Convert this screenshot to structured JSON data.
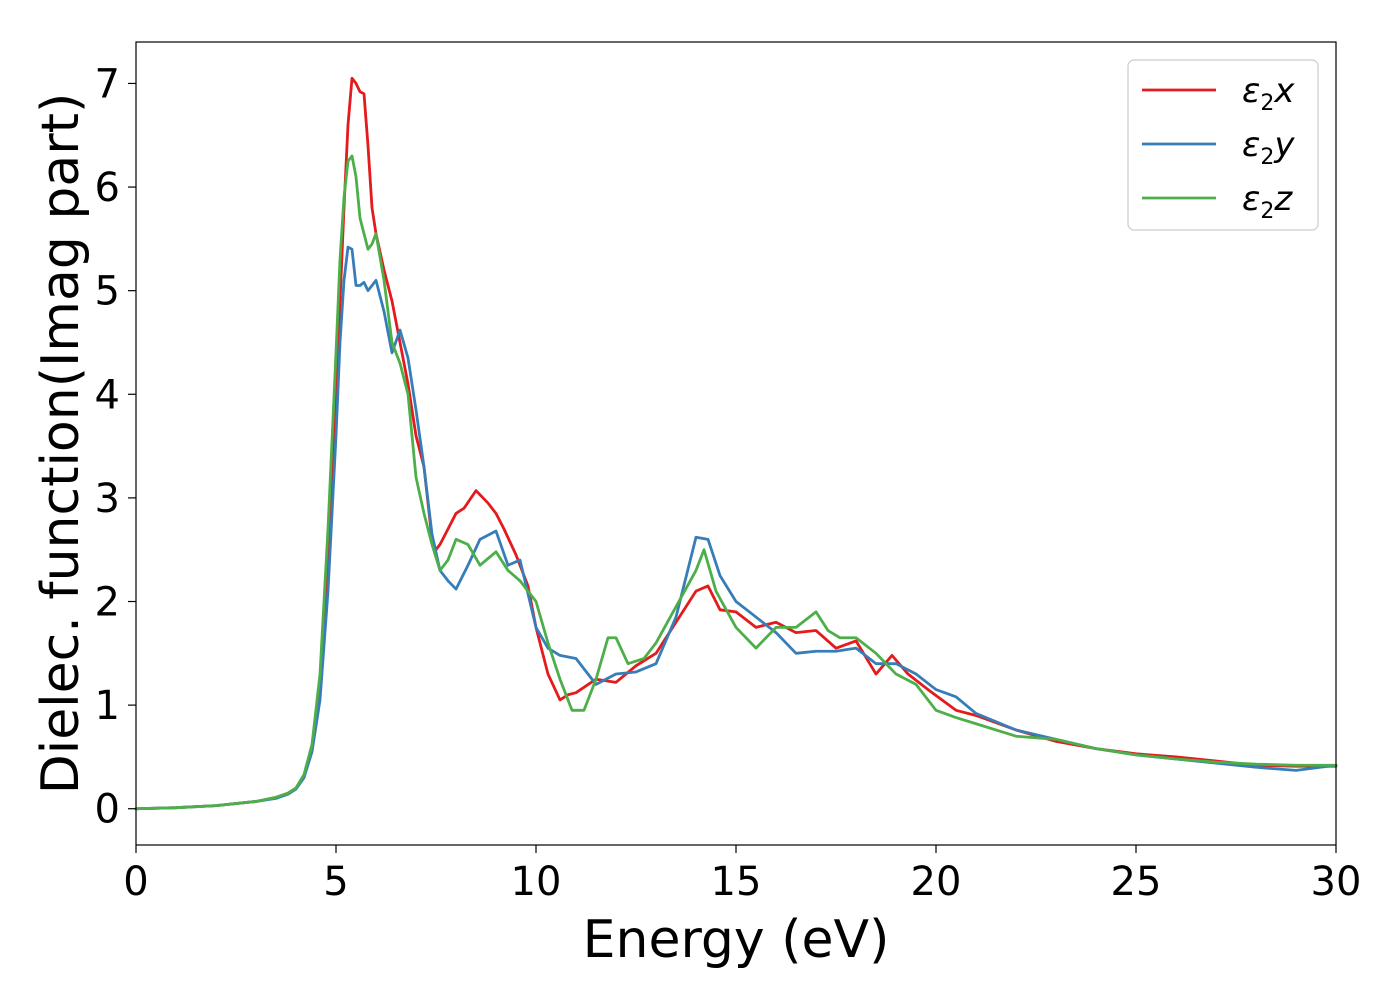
{
  "chart_data": {
    "type": "line",
    "xlabel": "Energy (eV)",
    "ylabel": "Dielec. function(Imag part)",
    "xlim": [
      0,
      30
    ],
    "ylim": [
      -0.35,
      7.4
    ],
    "xticks": [
      0,
      5,
      10,
      15,
      20,
      25,
      30
    ],
    "yticks": [
      0,
      1,
      2,
      3,
      4,
      5,
      6,
      7
    ],
    "grid": false,
    "legend": "top-right",
    "series": [
      {
        "name": "ε2x",
        "name_base": "ε",
        "name_sub": "2",
        "name_var": "x",
        "color": "#e41a1c",
        "x": [
          0,
          1,
          2,
          3,
          3.5,
          3.8,
          4.0,
          4.2,
          4.4,
          4.6,
          4.8,
          5.0,
          5.1,
          5.2,
          5.3,
          5.4,
          5.5,
          5.6,
          5.7,
          5.8,
          5.9,
          6.0,
          6.2,
          6.4,
          6.6,
          6.8,
          7.0,
          7.2,
          7.4,
          7.5,
          7.6,
          7.8,
          8.0,
          8.2,
          8.5,
          8.8,
          9.0,
          9.2,
          9.5,
          9.8,
          10.0,
          10.3,
          10.6,
          10.8,
          11.0,
          11.5,
          12.0,
          12.5,
          13.0,
          13.5,
          14.0,
          14.3,
          14.6,
          15.0,
          15.5,
          16.0,
          16.5,
          17.0,
          17.5,
          18.0,
          18.5,
          18.9,
          19.3,
          19.8,
          20.5,
          21,
          22,
          23,
          24,
          25,
          26,
          27,
          28,
          29,
          30
        ],
        "y": [
          0,
          0.01,
          0.03,
          0.07,
          0.11,
          0.15,
          0.2,
          0.32,
          0.6,
          1.2,
          2.4,
          4.0,
          4.9,
          5.8,
          6.6,
          7.05,
          7.0,
          6.92,
          6.9,
          6.4,
          5.8,
          5.55,
          5.2,
          4.9,
          4.5,
          4.1,
          3.6,
          3.3,
          2.6,
          2.5,
          2.55,
          2.7,
          2.85,
          2.9,
          3.07,
          2.95,
          2.85,
          2.7,
          2.45,
          2.15,
          1.75,
          1.3,
          1.05,
          1.1,
          1.12,
          1.25,
          1.22,
          1.38,
          1.5,
          1.8,
          2.1,
          2.15,
          1.92,
          1.9,
          1.75,
          1.8,
          1.7,
          1.72,
          1.55,
          1.62,
          1.3,
          1.48,
          1.3,
          1.15,
          0.95,
          0.9,
          0.76,
          0.65,
          0.58,
          0.53,
          0.5,
          0.46,
          0.42,
          0.41,
          0.41
        ]
      },
      {
        "name": "ε2y",
        "name_base": "ε",
        "name_sub": "2",
        "name_var": "y",
        "color": "#377eb8",
        "x": [
          0,
          1,
          2,
          3,
          3.5,
          3.8,
          4.0,
          4.2,
          4.4,
          4.6,
          4.8,
          5.0,
          5.1,
          5.2,
          5.3,
          5.4,
          5.5,
          5.6,
          5.7,
          5.8,
          5.9,
          6.0,
          6.2,
          6.4,
          6.6,
          6.8,
          7.0,
          7.2,
          7.4,
          7.6,
          7.8,
          8.0,
          8.3,
          8.6,
          9.0,
          9.3,
          9.6,
          10.0,
          10.3,
          10.6,
          11.0,
          11.5,
          12.0,
          12.5,
          13.0,
          13.5,
          14.0,
          14.3,
          14.6,
          15.0,
          15.5,
          16.0,
          16.5,
          17.0,
          17.5,
          18.0,
          18.5,
          19.0,
          19.5,
          20.0,
          20.5,
          21,
          22,
          23,
          24,
          25,
          26,
          27,
          28,
          29,
          30
        ],
        "y": [
          0,
          0.01,
          0.03,
          0.07,
          0.1,
          0.14,
          0.19,
          0.3,
          0.55,
          1.05,
          2.1,
          3.6,
          4.5,
          5.1,
          5.42,
          5.4,
          5.05,
          5.05,
          5.08,
          5.0,
          5.05,
          5.1,
          4.8,
          4.4,
          4.62,
          4.35,
          3.85,
          3.3,
          2.65,
          2.3,
          2.2,
          2.12,
          2.35,
          2.6,
          2.68,
          2.35,
          2.4,
          1.75,
          1.55,
          1.48,
          1.45,
          1.2,
          1.3,
          1.32,
          1.4,
          1.85,
          2.62,
          2.6,
          2.25,
          2.0,
          1.85,
          1.7,
          1.5,
          1.52,
          1.52,
          1.55,
          1.4,
          1.4,
          1.3,
          1.15,
          1.08,
          0.92,
          0.76,
          0.67,
          0.58,
          0.52,
          0.48,
          0.44,
          0.4,
          0.37,
          0.42
        ]
      },
      {
        "name": "ε2z",
        "name_base": "ε",
        "name_sub": "2",
        "name_var": "z",
        "color": "#4daf4a",
        "x": [
          0,
          1,
          2,
          3,
          3.5,
          3.8,
          4.0,
          4.2,
          4.4,
          4.6,
          4.8,
          5.0,
          5.1,
          5.2,
          5.3,
          5.4,
          5.5,
          5.6,
          5.7,
          5.8,
          5.9,
          6.0,
          6.2,
          6.4,
          6.6,
          6.8,
          7.0,
          7.2,
          7.4,
          7.6,
          7.8,
          8.0,
          8.3,
          8.6,
          9.0,
          9.3,
          9.6,
          10.0,
          10.3,
          10.6,
          10.9,
          11.2,
          11.5,
          11.8,
          12.0,
          12.3,
          12.7,
          13.0,
          13.5,
          14.0,
          14.2,
          14.5,
          15.0,
          15.5,
          16.0,
          16.5,
          17.0,
          17.3,
          17.6,
          18.0,
          18.5,
          19.0,
          19.5,
          20.0,
          20.5,
          21,
          22,
          23,
          24,
          25,
          26,
          27,
          28,
          29,
          30
        ],
        "y": [
          0,
          0.01,
          0.03,
          0.07,
          0.11,
          0.15,
          0.2,
          0.33,
          0.62,
          1.3,
          2.7,
          4.4,
          5.3,
          5.9,
          6.25,
          6.3,
          6.1,
          5.7,
          5.55,
          5.4,
          5.45,
          5.55,
          5.1,
          4.5,
          4.3,
          4.0,
          3.2,
          2.85,
          2.55,
          2.3,
          2.4,
          2.6,
          2.55,
          2.35,
          2.48,
          2.3,
          2.2,
          2.0,
          1.6,
          1.25,
          0.95,
          0.95,
          1.25,
          1.65,
          1.65,
          1.4,
          1.45,
          1.6,
          1.95,
          2.3,
          2.5,
          2.1,
          1.75,
          1.55,
          1.75,
          1.75,
          1.9,
          1.72,
          1.65,
          1.65,
          1.5,
          1.3,
          1.2,
          0.95,
          0.88,
          0.82,
          0.7,
          0.67,
          0.58,
          0.52,
          0.48,
          0.45,
          0.43,
          0.42,
          0.42
        ]
      }
    ]
  }
}
